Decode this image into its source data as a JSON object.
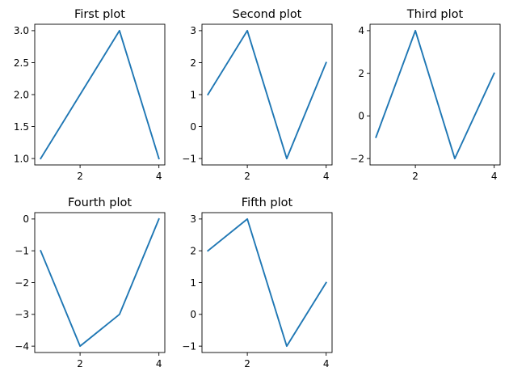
{
  "chart_data": [
    {
      "type": "line",
      "title": "First plot",
      "x": [
        1,
        2,
        3,
        4
      ],
      "series": [
        {
          "values": [
            1,
            2,
            3,
            1
          ]
        }
      ],
      "xlim": [
        0.85,
        4.15
      ],
      "ylim": [
        0.9,
        3.1
      ],
      "xticks": [
        2,
        4
      ],
      "yticks": [
        1.0,
        1.5,
        2.0,
        2.5,
        3.0
      ],
      "yticklabels": [
        "1.0",
        "1.5",
        "2.0",
        "2.5",
        "3.0"
      ],
      "grid": false,
      "xlabel": "",
      "ylabel": ""
    },
    {
      "type": "line",
      "title": "Second plot",
      "x": [
        1,
        2,
        3,
        4
      ],
      "series": [
        {
          "values": [
            1,
            3,
            -1,
            2
          ]
        }
      ],
      "xlim": [
        0.85,
        4.15
      ],
      "ylim": [
        -1.2,
        3.2
      ],
      "xticks": [
        2,
        4
      ],
      "yticks": [
        -1,
        0,
        1,
        2,
        3
      ],
      "yticklabels": [
        "−1",
        "0",
        "1",
        "2",
        "3"
      ],
      "grid": false,
      "xlabel": "",
      "ylabel": ""
    },
    {
      "type": "line",
      "title": "Third plot",
      "x": [
        1,
        2,
        3,
        4
      ],
      "series": [
        {
          "values": [
            -1,
            4,
            -2,
            2
          ]
        }
      ],
      "xlim": [
        0.85,
        4.15
      ],
      "ylim": [
        -2.3,
        4.3
      ],
      "xticks": [
        2,
        4
      ],
      "yticks": [
        -2,
        0,
        2,
        4
      ],
      "yticklabels": [
        "−2",
        "0",
        "2",
        "4"
      ],
      "grid": false,
      "xlabel": "",
      "ylabel": ""
    },
    {
      "type": "line",
      "title": "Fourth plot",
      "x": [
        1,
        2,
        3,
        4
      ],
      "series": [
        {
          "values": [
            -1,
            -4,
            -3,
            0
          ]
        }
      ],
      "xlim": [
        0.85,
        4.15
      ],
      "ylim": [
        -4.2,
        0.2
      ],
      "xticks": [
        2,
        4
      ],
      "yticks": [
        -4,
        -3,
        -2,
        -1,
        0
      ],
      "yticklabels": [
        "−4",
        "−3",
        "−2",
        "−1",
        "0"
      ],
      "grid": false,
      "xlabel": "",
      "ylabel": ""
    },
    {
      "type": "line",
      "title": "Fifth plot",
      "x": [
        1,
        2,
        3,
        4
      ],
      "series": [
        {
          "values": [
            2,
            3,
            -1,
            1
          ]
        }
      ],
      "xlim": [
        0.85,
        4.15
      ],
      "ylim": [
        -1.2,
        3.2
      ],
      "xticks": [
        2,
        4
      ],
      "yticks": [
        -1,
        0,
        1,
        2,
        3
      ],
      "yticklabels": [
        "−1",
        "0",
        "1",
        "2",
        "3"
      ],
      "grid": false,
      "xlabel": "",
      "ylabel": ""
    }
  ],
  "style": {
    "line_color": "#1f77b4",
    "axis_color": "#000000",
    "background": "#ffffff"
  }
}
